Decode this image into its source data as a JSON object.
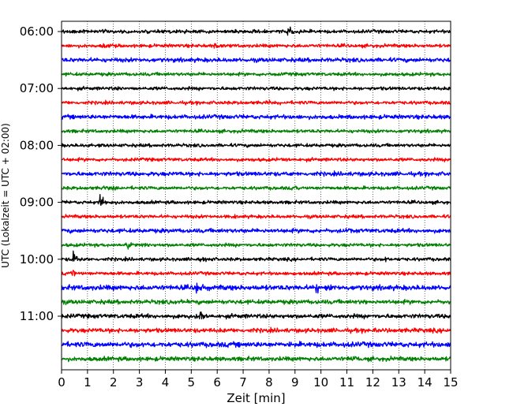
{
  "chart_data": {
    "type": "line",
    "title": "",
    "xlabel": "Zeit  [min]",
    "ylabel": "UTC (Lokalzeit = UTC + 02:00)",
    "xlim": [
      0,
      15
    ],
    "x_ticks": [
      0,
      1,
      2,
      3,
      4,
      5,
      6,
      7,
      8,
      9,
      10,
      11,
      12,
      13,
      14,
      15
    ],
    "y_ticks": [
      "06:00",
      "07:00",
      "08:00",
      "09:00",
      "10:00",
      "11:00"
    ],
    "y_tick_rows": [
      0,
      4,
      8,
      12,
      16,
      20
    ],
    "grid_x": true,
    "row_interval_min": 15,
    "row_colors": [
      "#000000",
      "#ff0000",
      "#0000ff",
      "#008000"
    ],
    "series": [
      {
        "values": [
          {
            "x": 8.7,
            "amp": 1.0
          }
        ]
      },
      {
        "values": [
          {
            "x": 1.6,
            "amp": 0.2
          },
          {
            "x": 5.9,
            "amp": 0.45
          }
        ]
      },
      {
        "values": []
      },
      {
        "values": [
          {
            "x": 7.9,
            "amp": 0.2
          }
        ]
      },
      {
        "values": [
          {
            "x": 2.2,
            "amp": 0.15
          }
        ]
      },
      {
        "values": [
          {
            "x": 8.0,
            "amp": 0.15
          }
        ]
      },
      {
        "values": [
          {
            "x": 10.5,
            "amp": 0.15
          }
        ]
      },
      {
        "values": []
      },
      {
        "values": [
          {
            "x": 1.0,
            "amp": 0.2
          },
          {
            "x": 15.0,
            "amp": 0.15
          }
        ]
      },
      {
        "values": [
          {
            "x": 8.6,
            "amp": 0.15
          }
        ]
      },
      {
        "values": [
          {
            "x": 8.5,
            "amp": 0.15
          }
        ]
      },
      {
        "values": [
          {
            "x": 1.6,
            "amp": 0.2
          },
          {
            "x": 9.0,
            "amp": 0.15
          }
        ]
      },
      {
        "values": [
          {
            "x": 1.5,
            "amp": 1.0
          }
        ]
      },
      {
        "values": [
          {
            "x": 6.1,
            "amp": 0.15
          }
        ]
      },
      {
        "values": [
          {
            "x": 10.8,
            "amp": 0.2
          }
        ]
      },
      {
        "values": [
          {
            "x": 2.5,
            "amp": 0.6
          },
          {
            "x": 2.9,
            "amp": 0.35
          }
        ]
      },
      {
        "values": [
          {
            "x": 0.45,
            "amp": 1.0
          },
          {
            "x": 5.2,
            "amp": 0.2
          },
          {
            "x": 12.5,
            "amp": 0.25
          }
        ]
      },
      {
        "values": [
          {
            "x": 0.45,
            "amp": 0.5
          },
          {
            "x": 8.9,
            "amp": 0.15
          }
        ]
      },
      {
        "values": [
          {
            "x": 5.2,
            "amp": 0.9
          },
          {
            "x": 9.8,
            "amp": 0.7
          }
        ]
      },
      {
        "values": [
          {
            "x": 4.4,
            "amp": 0.15
          },
          {
            "x": 11.5,
            "amp": 0.15
          }
        ]
      },
      {
        "values": [
          {
            "x": 5.35,
            "amp": 0.65
          },
          {
            "x": 4.9,
            "amp": 0.3
          }
        ]
      },
      {
        "values": [
          {
            "x": 12.0,
            "amp": 0.15
          }
        ]
      },
      {
        "values": [
          {
            "x": 8.5,
            "amp": 0.15
          }
        ]
      },
      {
        "values": [
          {
            "x": 11.0,
            "amp": 0.15
          }
        ]
      }
    ]
  }
}
